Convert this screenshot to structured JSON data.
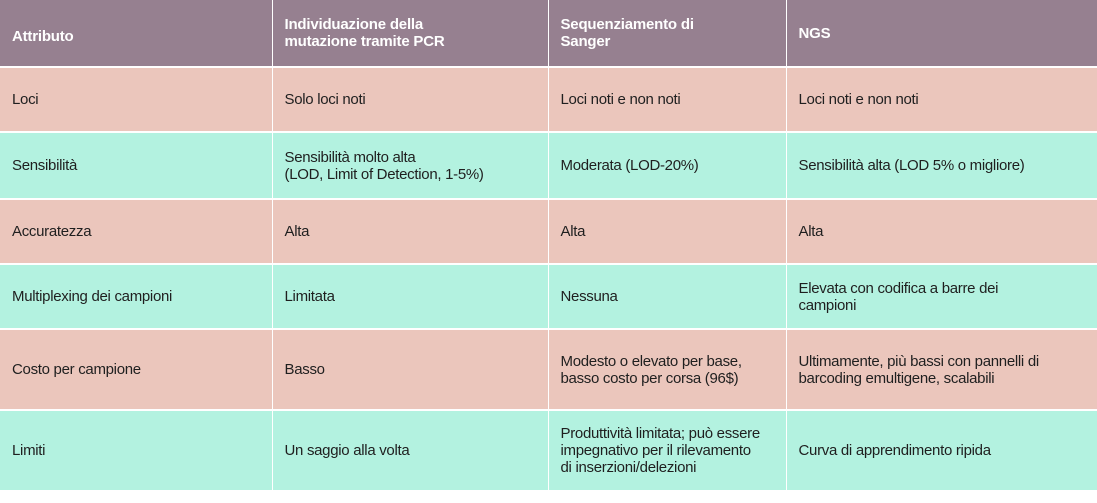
{
  "colors": {
    "header_bg": "#968090",
    "row_pink": "#ebc6bc",
    "row_green": "#b3f2e0"
  },
  "table": {
    "headers": [
      "Attributo",
      "Individuazione della\nmutazione tramite PCR",
      "Sequenziamento di\nSanger",
      "NGS"
    ],
    "rows": [
      {
        "attribute": "Loci",
        "pcr": "Solo loci noti",
        "sanger": "Loci noti e non noti",
        "ngs": "Loci noti e non noti"
      },
      {
        "attribute": "Sensibilità",
        "pcr": "Sensibilità molto alta\n (LOD, Limit of Detection, 1-5%)",
        "sanger": "Moderata (LOD-20%)",
        "ngs": "Sensibilità alta (LOD 5% o migliore)"
      },
      {
        "attribute": "Accuratezza",
        "pcr": "Alta",
        "sanger": "Alta",
        "ngs": "Alta"
      },
      {
        "attribute": "Multiplexing dei campioni",
        "pcr": "Limitata",
        "sanger": "Nessuna",
        "ngs": "Elevata con codifica a barre dei\ncampioni"
      },
      {
        "attribute": "Costo per campione",
        "pcr": "Basso",
        "sanger": "Modesto o elevato per base,\nbasso costo per corsa (96$)",
        "ngs": "Ultimamente, più bassi con pannelli di\nbarcoding emultigene, scalabili"
      },
      {
        "attribute": "Limiti",
        "pcr": "Un saggio alla volta",
        "sanger": "Produttività limitata; può essere\nimpegnativo per il rilevamento\ndi inserzioni/delezioni",
        "ngs": "Curva di apprendimento ripida"
      }
    ]
  }
}
